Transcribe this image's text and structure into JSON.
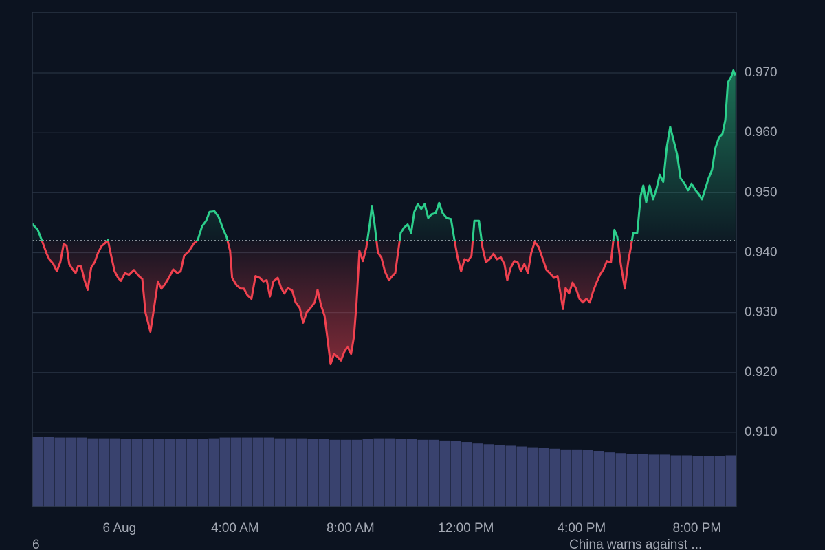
{
  "chart_data": {
    "type": "line",
    "x": [
      -3.02,
      -2.83,
      -2.67,
      -2.52,
      -2.43,
      -2.29,
      -2.17,
      -2.05,
      -1.93,
      -1.83,
      -1.74,
      -1.62,
      -1.52,
      -1.43,
      -1.33,
      -1.21,
      -1.1,
      -0.98,
      -0.86,
      -0.74,
      -0.62,
      -0.52,
      -0.4,
      -0.29,
      -0.17,
      -0.05,
      0.05,
      0.19,
      0.33,
      0.5,
      0.67,
      0.79,
      0.9,
      1.07,
      1.21,
      1.33,
      1.45,
      1.57,
      1.71,
      1.86,
      2.0,
      2.12,
      2.24,
      2.4,
      2.57,
      2.71,
      2.86,
      3.0,
      3.12,
      3.29,
      3.43,
      3.6,
      3.71,
      3.83,
      3.9,
      4.05,
      4.19,
      4.31,
      4.43,
      4.57,
      4.71,
      4.86,
      4.98,
      5.1,
      5.21,
      5.33,
      5.48,
      5.6,
      5.71,
      5.83,
      5.98,
      6.1,
      6.24,
      6.36,
      6.48,
      6.62,
      6.76,
      6.86,
      6.98,
      7.1,
      7.21,
      7.31,
      7.43,
      7.55,
      7.67,
      7.79,
      7.9,
      8.02,
      8.12,
      8.21,
      8.31,
      8.43,
      8.55,
      8.67,
      8.74,
      8.83,
      8.95,
      9.07,
      9.19,
      9.33,
      9.45,
      9.55,
      9.64,
      9.74,
      9.86,
      9.98,
      10.1,
      10.21,
      10.33,
      10.45,
      10.57,
      10.69,
      10.81,
      10.95,
      11.07,
      11.19,
      11.33,
      11.48,
      11.6,
      11.71,
      11.83,
      11.95,
      12.07,
      12.19,
      12.29,
      12.45,
      12.57,
      12.69,
      12.81,
      12.95,
      13.07,
      13.21,
      13.33,
      13.43,
      13.55,
      13.67,
      13.79,
      13.9,
      14.02,
      14.14,
      14.26,
      14.38,
      14.52,
      14.64,
      14.79,
      14.9,
      15.05,
      15.17,
      15.26,
      15.36,
      15.45,
      15.57,
      15.69,
      15.81,
      15.93,
      16.05,
      16.17,
      16.29,
      16.4,
      16.52,
      16.64,
      16.76,
      16.88,
      17.02,
      17.14,
      17.24,
      17.36,
      17.5,
      17.62,
      17.71,
      17.79,
      17.93,
      18.05,
      18.14,
      18.24,
      18.36,
      18.48,
      18.6,
      18.71,
      18.83,
      18.95,
      19.07,
      19.19,
      19.31,
      19.43,
      19.57,
      19.69,
      19.81,
      19.95,
      20.07,
      20.17,
      20.29,
      20.4,
      20.52,
      20.64,
      20.76,
      20.88,
      20.98,
      21.07,
      21.19,
      21.26,
      21.33
    ],
    "values": [
      0.9448,
      0.9438,
      0.9418,
      0.9398,
      0.9389,
      0.9381,
      0.9369,
      0.9384,
      0.9415,
      0.9411,
      0.9381,
      0.9372,
      0.9366,
      0.9378,
      0.9377,
      0.9354,
      0.9338,
      0.9375,
      0.9384,
      0.94,
      0.9411,
      0.9415,
      0.9421,
      0.9395,
      0.9369,
      0.9358,
      0.9353,
      0.9366,
      0.9363,
      0.9371,
      0.9361,
      0.9356,
      0.93,
      0.9268,
      0.9312,
      0.9352,
      0.934,
      0.9347,
      0.9358,
      0.9372,
      0.9366,
      0.9369,
      0.9395,
      0.9402,
      0.9415,
      0.9421,
      0.9444,
      0.9453,
      0.9468,
      0.9469,
      0.946,
      0.9438,
      0.9426,
      0.9403,
      0.9358,
      0.9346,
      0.934,
      0.934,
      0.9329,
      0.9323,
      0.9361,
      0.9358,
      0.9352,
      0.9354,
      0.9327,
      0.9352,
      0.9358,
      0.9341,
      0.9332,
      0.9341,
      0.9337,
      0.9317,
      0.9308,
      0.9283,
      0.93,
      0.9308,
      0.9317,
      0.9338,
      0.9312,
      0.9295,
      0.9254,
      0.9214,
      0.9231,
      0.9226,
      0.922,
      0.9235,
      0.9243,
      0.9231,
      0.926,
      0.9317,
      0.9403,
      0.9386,
      0.9409,
      0.9449,
      0.9478,
      0.9449,
      0.94,
      0.9392,
      0.9369,
      0.9354,
      0.9361,
      0.9366,
      0.9398,
      0.9433,
      0.9442,
      0.9447,
      0.9433,
      0.9468,
      0.9481,
      0.9473,
      0.9481,
      0.9458,
      0.9464,
      0.9466,
      0.9483,
      0.9466,
      0.9458,
      0.9456,
      0.9421,
      0.9392,
      0.9369,
      0.9389,
      0.9386,
      0.9395,
      0.9453,
      0.9453,
      0.9409,
      0.9384,
      0.9389,
      0.9398,
      0.9389,
      0.9392,
      0.9381,
      0.9354,
      0.9375,
      0.9386,
      0.9384,
      0.9369,
      0.9381,
      0.9366,
      0.94,
      0.9418,
      0.9409,
      0.9392,
      0.9371,
      0.9366,
      0.9358,
      0.9361,
      0.9335,
      0.9306,
      0.9341,
      0.9332,
      0.935,
      0.934,
      0.9323,
      0.9317,
      0.9323,
      0.9317,
      0.9335,
      0.935,
      0.9363,
      0.9372,
      0.9386,
      0.9384,
      0.9438,
      0.9426,
      0.9381,
      0.934,
      0.9386,
      0.9409,
      0.9433,
      0.9433,
      0.9495,
      0.9512,
      0.9484,
      0.9512,
      0.9489,
      0.9507,
      0.953,
      0.9518,
      0.9575,
      0.961,
      0.9587,
      0.9564,
      0.9524,
      0.9515,
      0.9504,
      0.9515,
      0.9504,
      0.9497,
      0.9489,
      0.9507,
      0.9524,
      0.9538,
      0.9575,
      0.9592,
      0.9598,
      0.9621,
      0.9684,
      0.9694,
      0.9704,
      0.9696
    ],
    "baseline": 0.942,
    "up_color": "#2ccf8c",
    "down_color": "#f0414f",
    "xlim": [
      -3.02,
      21.36
    ],
    "xticks": [
      {
        "value": 0,
        "label": "6 Aug"
      },
      {
        "value": 4,
        "label": "4:00 AM"
      },
      {
        "value": 8,
        "label": "8:00 AM"
      },
      {
        "value": 12,
        "label": "12:00 PM"
      },
      {
        "value": 16,
        "label": "4:00 PM"
      },
      {
        "value": 20,
        "label": "8:00 PM"
      }
    ],
    "ylim": [
      0.8976,
      0.9801
    ],
    "yticks": [
      {
        "value": 0.91,
        "label": "0.910"
      },
      {
        "value": 0.92,
        "label": "0.920"
      },
      {
        "value": 0.93,
        "label": "0.930"
      },
      {
        "value": 0.94,
        "label": "0.940"
      },
      {
        "value": 0.95,
        "label": "0.950"
      },
      {
        "value": 0.96,
        "label": "0.960"
      },
      {
        "value": 0.97,
        "label": "0.970"
      }
    ],
    "grid": true,
    "volume": {
      "axis": "y2",
      "color": "#39426e",
      "values": [
        94,
        94,
        93,
        93,
        93,
        92,
        92,
        92,
        91,
        91,
        91,
        91,
        91,
        91,
        91,
        91,
        92,
        93,
        93,
        93,
        93,
        93,
        92,
        92,
        92,
        91,
        91,
        90,
        90,
        90,
        91,
        92,
        92,
        91,
        91,
        90,
        90,
        89,
        88,
        87,
        85,
        84,
        83,
        82,
        81,
        80,
        79,
        78,
        77,
        77,
        76,
        75,
        73,
        72,
        71,
        71,
        70,
        70,
        69,
        69,
        68,
        68,
        68,
        69
      ]
    },
    "y2lim": [
      0,
      100
    ]
  },
  "footer": {
    "left": "6",
    "right": "China warns against ..."
  }
}
